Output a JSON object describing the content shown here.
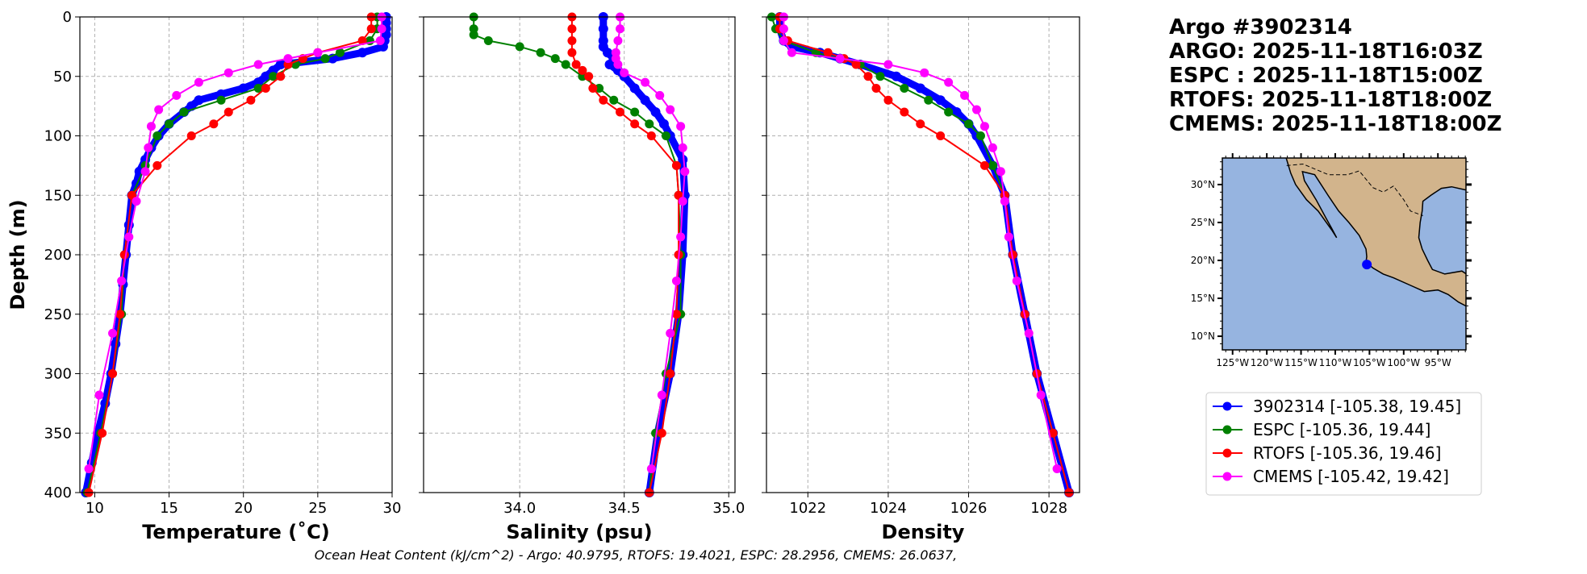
{
  "title_block": {
    "lines": [
      "Argo #3902314",
      "ARGO: 2025-11-18T16:03Z",
      "ESPC : 2025-11-18T15:00Z",
      "RTOFS: 2025-11-18T18:00Z",
      "CMEMS: 2025-11-18T18:00Z"
    ]
  },
  "caption": "Ocean Heat Content (kJ/cm^2) - Argo: 40.9795,  RTOFS: 19.4021,  ESPC: 28.2956,  CMEMS: 26.0637,",
  "legend": [
    {
      "label": "3902314 [-105.38, 19.45]",
      "color": "#0000ff"
    },
    {
      "label": "ESPC [-105.36, 19.44]",
      "color": "#008000"
    },
    {
      "label": "RTOFS [-105.36, 19.46]",
      "color": "#ff0000"
    },
    {
      "label": "CMEMS [-105.42, 19.42]",
      "color": "#ff00ff"
    }
  ],
  "map": {
    "xlim": [
      -126.5,
      -90.9
    ],
    "ylim": [
      8.2,
      33.5
    ],
    "xticks": [
      -125,
      -120,
      -115,
      -110,
      -105,
      -100,
      -95
    ],
    "xtick_labels": [
      "125°W",
      "120°W",
      "115°W",
      "110°W",
      "105°W",
      "100°W",
      "95°W"
    ],
    "yticks": [
      10,
      15,
      20,
      25,
      30
    ],
    "ytick_labels": [
      "10°N",
      "15°N",
      "20°N",
      "25°N",
      "30°N"
    ],
    "marker": [
      -105.38,
      19.45
    ],
    "ocean_color": "#96b4e0",
    "land_color": "#d2b48c",
    "marker_color": "#0000ff"
  },
  "chart_data": [
    {
      "type": "line",
      "xlabel": "Temperature (˚C)",
      "ylabel": "Depth (m)",
      "xlim": [
        9,
        30
      ],
      "ylim": [
        400,
        0
      ],
      "grid": true,
      "xticks": [
        10,
        15,
        20,
        25,
        30
      ],
      "yticks": [
        0,
        50,
        100,
        150,
        200,
        250,
        300,
        350,
        400
      ],
      "series": [
        {
          "name": "3902314",
          "color": "#0000ff",
          "depth": [
            0,
            5,
            10,
            15,
            20,
            25,
            30,
            35,
            40,
            45,
            50,
            55,
            60,
            65,
            70,
            75,
            80,
            90,
            100,
            110,
            120,
            130,
            140,
            150,
            175,
            200,
            225,
            250,
            275,
            300,
            325,
            350,
            375,
            400
          ],
          "values": [
            29.6,
            29.6,
            29.6,
            29.6,
            29.5,
            29.4,
            28,
            26,
            22.5,
            22,
            21.5,
            21,
            20,
            18.5,
            17,
            16.5,
            16,
            15,
            14.3,
            13.8,
            13.4,
            13,
            12.8,
            12.5,
            12.3,
            12.1,
            11.9,
            11.7,
            11.4,
            11.1,
            10.7,
            10.2,
            9.8,
            9.4
          ]
        },
        {
          "name": "ESPC",
          "color": "#008000",
          "depth": [
            0,
            10,
            20,
            30,
            35,
            40,
            50,
            60,
            70,
            80,
            90,
            100,
            125,
            150,
            200,
            250,
            300,
            350,
            400
          ],
          "values": [
            29,
            29,
            28.5,
            26.5,
            25.5,
            23.5,
            22,
            21,
            18.5,
            16,
            15,
            14.2,
            13.4,
            12.5,
            12,
            11.8,
            11.2,
            10.4,
            9.5
          ]
        },
        {
          "name": "RTOFS",
          "color": "#ff0000",
          "depth": [
            0,
            10,
            20,
            30,
            35,
            40,
            50,
            60,
            70,
            80,
            90,
            100,
            125,
            150,
            200,
            250,
            300,
            350,
            400
          ],
          "values": [
            28.6,
            28.6,
            28,
            25,
            24,
            23,
            22.5,
            21.5,
            20.5,
            19,
            18,
            16.5,
            14.2,
            12.5,
            12,
            11.7,
            11.2,
            10.5,
            9.6
          ]
        },
        {
          "name": "CMEMS",
          "color": "#ff00ff",
          "depth": [
            0,
            10,
            20,
            30,
            35,
            40,
            47,
            55,
            66,
            78,
            92,
            110,
            130,
            155,
            185,
            222,
            266,
            318,
            380
          ],
          "values": [
            29.3,
            29.3,
            29.2,
            25,
            23,
            21,
            19,
            17,
            15.5,
            14.3,
            13.8,
            13.6,
            13.4,
            12.8,
            12.3,
            11.8,
            11.2,
            10.3,
            9.6
          ]
        }
      ]
    },
    {
      "type": "line",
      "xlabel": "Salinity (psu)",
      "ylabel": "",
      "xlim": [
        33.54,
        35.03
      ],
      "ylim": [
        400,
        0
      ],
      "grid": true,
      "xticks": [
        34.0,
        34.5,
        35.0
      ],
      "xtick_labels": [
        "34.0",
        "34.5",
        "35.0"
      ],
      "yticks": [
        0,
        50,
        100,
        150,
        200,
        250,
        300,
        350,
        400
      ],
      "series": [
        {
          "name": "3902314",
          "color": "#0000ff",
          "depth": [
            0,
            10,
            20,
            25,
            30,
            35,
            40,
            45,
            50,
            60,
            70,
            80,
            90,
            100,
            120,
            150,
            200,
            250,
            300,
            350,
            400
          ],
          "values": [
            34.4,
            34.4,
            34.4,
            34.4,
            34.42,
            34.45,
            34.43,
            34.47,
            34.5,
            34.55,
            34.6,
            34.65,
            34.69,
            34.72,
            34.78,
            34.79,
            34.78,
            34.76,
            34.72,
            34.66,
            34.62
          ]
        },
        {
          "name": "ESPC",
          "color": "#008000",
          "depth": [
            0,
            10,
            15,
            20,
            25,
            30,
            35,
            40,
            50,
            60,
            70,
            80,
            90,
            100,
            125,
            150,
            200,
            250,
            300,
            350,
            400
          ],
          "values": [
            33.78,
            33.78,
            33.78,
            33.85,
            34.0,
            34.1,
            34.17,
            34.22,
            34.3,
            34.38,
            34.45,
            34.55,
            34.62,
            34.7,
            34.75,
            34.76,
            34.77,
            34.77,
            34.7,
            34.65,
            34.62
          ]
        },
        {
          "name": "RTOFS",
          "color": "#ff0000",
          "depth": [
            0,
            10,
            20,
            30,
            40,
            45,
            50,
            60,
            70,
            80,
            90,
            100,
            125,
            150,
            200,
            250,
            300,
            350,
            400
          ],
          "values": [
            34.25,
            34.25,
            34.25,
            34.25,
            34.27,
            34.3,
            34.33,
            34.35,
            34.4,
            34.48,
            34.55,
            34.63,
            34.75,
            34.76,
            34.76,
            34.75,
            34.72,
            34.68,
            34.62
          ]
        },
        {
          "name": "CMEMS",
          "color": "#ff00ff",
          "depth": [
            0,
            10,
            20,
            30,
            35,
            40,
            47,
            55,
            66,
            78,
            92,
            110,
            130,
            155,
            185,
            222,
            266,
            318,
            380
          ],
          "values": [
            34.48,
            34.48,
            34.47,
            34.46,
            34.46,
            34.47,
            34.5,
            34.6,
            34.67,
            34.72,
            34.77,
            34.78,
            34.79,
            34.78,
            34.77,
            34.75,
            34.72,
            34.68,
            34.63
          ]
        }
      ]
    },
    {
      "type": "line",
      "xlabel": "Density",
      "ylabel": "",
      "xlim": [
        1020.97,
        1028.76
      ],
      "ylim": [
        400,
        0
      ],
      "grid": true,
      "xticks": [
        1022,
        1024,
        1026,
        1028
      ],
      "yticks": [
        0,
        50,
        100,
        150,
        200,
        250,
        300,
        350,
        400
      ],
      "series": [
        {
          "name": "3902314",
          "color": "#0000ff",
          "depth": [
            0,
            10,
            20,
            25,
            30,
            35,
            40,
            50,
            60,
            70,
            80,
            90,
            100,
            125,
            150,
            200,
            250,
            300,
            350,
            400
          ],
          "values": [
            1021.3,
            1021.3,
            1021.4,
            1021.6,
            1022.3,
            1022.8,
            1023.3,
            1024.2,
            1024.8,
            1025.3,
            1025.7,
            1026.0,
            1026.2,
            1026.6,
            1026.9,
            1027.1,
            1027.4,
            1027.7,
            1028.1,
            1028.5
          ]
        },
        {
          "name": "ESPC",
          "color": "#008000",
          "depth": [
            0,
            10,
            20,
            30,
            35,
            40,
            50,
            60,
            70,
            80,
            90,
            100,
            125,
            150,
            200,
            250,
            300,
            350,
            400
          ],
          "values": [
            1021.1,
            1021.2,
            1021.4,
            1022.2,
            1022.8,
            1023.3,
            1023.8,
            1024.4,
            1025.0,
            1025.5,
            1026.0,
            1026.3,
            1026.6,
            1026.9,
            1027.1,
            1027.4,
            1027.7,
            1028.1,
            1028.5
          ]
        },
        {
          "name": "RTOFS",
          "color": "#ff0000",
          "depth": [
            0,
            10,
            20,
            30,
            35,
            40,
            50,
            60,
            70,
            80,
            90,
            100,
            125,
            150,
            200,
            250,
            300,
            350,
            400
          ],
          "values": [
            1021.3,
            1021.3,
            1021.5,
            1022.5,
            1022.9,
            1023.2,
            1023.5,
            1023.7,
            1024.0,
            1024.4,
            1024.8,
            1025.3,
            1026.4,
            1026.9,
            1027.1,
            1027.4,
            1027.7,
            1028.1,
            1028.5
          ]
        },
        {
          "name": "CMEMS",
          "color": "#ff00ff",
          "depth": [
            0,
            10,
            20,
            30,
            35,
            40,
            47,
            55,
            66,
            78,
            92,
            110,
            130,
            155,
            185,
            222,
            266,
            318,
            380
          ],
          "values": [
            1021.4,
            1021.4,
            1021.4,
            1021.6,
            1022.8,
            1024.0,
            1024.9,
            1025.5,
            1025.9,
            1026.2,
            1026.4,
            1026.6,
            1026.8,
            1026.9,
            1027.0,
            1027.2,
            1027.5,
            1027.8,
            1028.2
          ]
        }
      ]
    }
  ]
}
